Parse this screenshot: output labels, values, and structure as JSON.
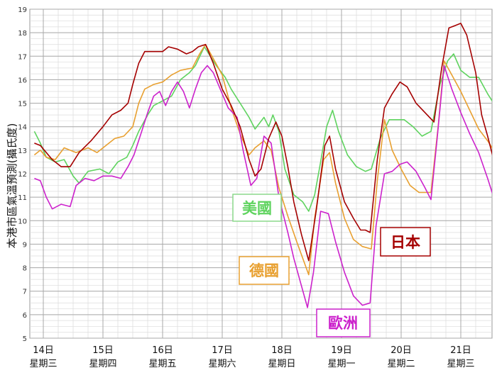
{
  "chart_data": {
    "type": "line",
    "title": "",
    "ylabel": "本港市區氣溫預測(攝氏度)",
    "ylim": [
      5,
      19
    ],
    "ytick_step": 1,
    "grid": true,
    "x_range": [
      -0.25,
      7.35
    ],
    "x_ticks": [
      {
        "x": 0,
        "date": "14日",
        "weekday": "星期三"
      },
      {
        "x": 1,
        "date": "15日",
        "weekday": "星期四"
      },
      {
        "x": 2,
        "date": "16日",
        "weekday": "星期五"
      },
      {
        "x": 3,
        "date": "17日",
        "weekday": "星期六"
      },
      {
        "x": 4,
        "date": "18日",
        "weekday": "星期日"
      },
      {
        "x": 5,
        "date": "19日",
        "weekday": "星期一"
      },
      {
        "x": 6,
        "date": "20日",
        "weekday": "星期二"
      },
      {
        "x": 7,
        "date": "21日",
        "weekday": "星期三"
      }
    ],
    "series": [
      {
        "name": "日本",
        "color": "#a50000",
        "legend_border": "#a50000",
        "points": [
          [
            -0.15,
            13.3
          ],
          [
            -0.05,
            13.2
          ],
          [
            0.05,
            12.9
          ],
          [
            0.15,
            12.6
          ],
          [
            0.3,
            12.3
          ],
          [
            0.45,
            12.3
          ],
          [
            0.6,
            12.9
          ],
          [
            0.8,
            13.4
          ],
          [
            1.0,
            14.0
          ],
          [
            1.15,
            14.5
          ],
          [
            1.3,
            14.7
          ],
          [
            1.42,
            15.0
          ],
          [
            1.5,
            15.8
          ],
          [
            1.6,
            16.7
          ],
          [
            1.7,
            17.2
          ],
          [
            1.85,
            17.2
          ],
          [
            2.0,
            17.2
          ],
          [
            2.1,
            17.4
          ],
          [
            2.25,
            17.3
          ],
          [
            2.4,
            17.1
          ],
          [
            2.5,
            17.2
          ],
          [
            2.6,
            17.4
          ],
          [
            2.72,
            17.5
          ],
          [
            2.85,
            16.7
          ],
          [
            3.0,
            15.6
          ],
          [
            3.15,
            14.9
          ],
          [
            3.3,
            14.0
          ],
          [
            3.45,
            12.6
          ],
          [
            3.55,
            11.9
          ],
          [
            3.65,
            12.2
          ],
          [
            3.78,
            13.5
          ],
          [
            3.9,
            14.2
          ],
          [
            4.0,
            13.6
          ],
          [
            4.1,
            12.3
          ],
          [
            4.2,
            10.8
          ],
          [
            4.33,
            9.4
          ],
          [
            4.45,
            8.3
          ],
          [
            4.58,
            10.5
          ],
          [
            4.72,
            13.2
          ],
          [
            4.8,
            13.6
          ],
          [
            4.9,
            12.2
          ],
          [
            5.05,
            10.8
          ],
          [
            5.2,
            10.1
          ],
          [
            5.32,
            9.6
          ],
          [
            5.4,
            9.6
          ],
          [
            5.48,
            9.5
          ],
          [
            5.6,
            12.6
          ],
          [
            5.72,
            14.8
          ],
          [
            5.85,
            15.4
          ],
          [
            5.98,
            15.9
          ],
          [
            6.1,
            15.7
          ],
          [
            6.25,
            15.0
          ],
          [
            6.4,
            14.6
          ],
          [
            6.55,
            14.2
          ],
          [
            6.68,
            16.5
          ],
          [
            6.8,
            18.2
          ],
          [
            6.9,
            18.3
          ],
          [
            7.0,
            18.4
          ],
          [
            7.1,
            17.9
          ],
          [
            7.25,
            16.3
          ],
          [
            7.35,
            14.5
          ],
          [
            7.45,
            13.6
          ],
          [
            7.55,
            12.6
          ]
        ]
      },
      {
        "name": "美國",
        "color": "#5fd35f",
        "legend_border": "#8bd98b",
        "points": [
          [
            -0.15,
            13.8
          ],
          [
            -0.05,
            13.3
          ],
          [
            0.05,
            12.7
          ],
          [
            0.2,
            12.5
          ],
          [
            0.35,
            12.6
          ],
          [
            0.5,
            11.9
          ],
          [
            0.6,
            11.6
          ],
          [
            0.75,
            12.1
          ],
          [
            0.95,
            12.2
          ],
          [
            1.1,
            12.0
          ],
          [
            1.25,
            12.5
          ],
          [
            1.4,
            12.7
          ],
          [
            1.5,
            13.2
          ],
          [
            1.6,
            13.8
          ],
          [
            1.75,
            14.5
          ],
          [
            1.85,
            14.9
          ],
          [
            2.0,
            15.1
          ],
          [
            2.15,
            15.3
          ],
          [
            2.3,
            16.0
          ],
          [
            2.45,
            16.3
          ],
          [
            2.55,
            16.6
          ],
          [
            2.7,
            17.4
          ],
          [
            2.8,
            17.0
          ],
          [
            2.9,
            16.6
          ],
          [
            3.05,
            16.1
          ],
          [
            3.15,
            15.6
          ],
          [
            3.3,
            15.0
          ],
          [
            3.45,
            14.4
          ],
          [
            3.55,
            13.9
          ],
          [
            3.7,
            14.4
          ],
          [
            3.78,
            14.0
          ],
          [
            3.85,
            14.5
          ],
          [
            3.95,
            13.8
          ],
          [
            4.05,
            12.2
          ],
          [
            4.2,
            11.1
          ],
          [
            4.35,
            10.8
          ],
          [
            4.45,
            10.4
          ],
          [
            4.55,
            11.1
          ],
          [
            4.65,
            12.5
          ],
          [
            4.75,
            14.0
          ],
          [
            4.85,
            14.7
          ],
          [
            4.95,
            13.8
          ],
          [
            5.1,
            12.8
          ],
          [
            5.25,
            12.3
          ],
          [
            5.4,
            12.1
          ],
          [
            5.5,
            12.2
          ],
          [
            5.65,
            13.5
          ],
          [
            5.8,
            14.3
          ],
          [
            5.95,
            14.3
          ],
          [
            6.05,
            14.3
          ],
          [
            6.2,
            14.0
          ],
          [
            6.35,
            13.6
          ],
          [
            6.5,
            13.8
          ],
          [
            6.65,
            15.8
          ],
          [
            6.78,
            16.8
          ],
          [
            6.88,
            17.1
          ],
          [
            7.0,
            16.4
          ],
          [
            7.15,
            16.1
          ],
          [
            7.3,
            16.1
          ],
          [
            7.45,
            15.4
          ],
          [
            7.55,
            15.0
          ]
        ]
      },
      {
        "name": "德國",
        "color": "#e8a030",
        "legend_border": "#e8a030",
        "points": [
          [
            -0.15,
            12.8
          ],
          [
            -0.05,
            13.0
          ],
          [
            0.05,
            12.7
          ],
          [
            0.2,
            12.6
          ],
          [
            0.35,
            13.1
          ],
          [
            0.55,
            12.9
          ],
          [
            0.75,
            13.1
          ],
          [
            0.9,
            12.9
          ],
          [
            1.05,
            13.2
          ],
          [
            1.2,
            13.5
          ],
          [
            1.35,
            13.6
          ],
          [
            1.5,
            14.0
          ],
          [
            1.6,
            15.0
          ],
          [
            1.7,
            15.6
          ],
          [
            1.85,
            15.8
          ],
          [
            2.0,
            15.9
          ],
          [
            2.15,
            16.2
          ],
          [
            2.3,
            16.4
          ],
          [
            2.5,
            16.5
          ],
          [
            2.62,
            17.1
          ],
          [
            2.72,
            17.5
          ],
          [
            2.85,
            16.9
          ],
          [
            3.0,
            16.2
          ],
          [
            3.15,
            14.8
          ],
          [
            3.3,
            13.7
          ],
          [
            3.45,
            12.8
          ],
          [
            3.55,
            13.1
          ],
          [
            3.7,
            13.4
          ],
          [
            3.82,
            13.0
          ],
          [
            3.95,
            11.4
          ],
          [
            4.1,
            10.2
          ],
          [
            4.25,
            9.1
          ],
          [
            4.35,
            8.4
          ],
          [
            4.45,
            7.7
          ],
          [
            4.55,
            10.1
          ],
          [
            4.7,
            12.6
          ],
          [
            4.8,
            12.9
          ],
          [
            4.9,
            11.6
          ],
          [
            5.05,
            10.1
          ],
          [
            5.2,
            9.2
          ],
          [
            5.35,
            8.9
          ],
          [
            5.5,
            8.8
          ],
          [
            5.6,
            11.7
          ],
          [
            5.72,
            14.3
          ],
          [
            5.85,
            13.0
          ],
          [
            6.0,
            12.2
          ],
          [
            6.15,
            11.5
          ],
          [
            6.3,
            11.2
          ],
          [
            6.5,
            11.2
          ],
          [
            6.62,
            14.0
          ],
          [
            6.72,
            16.8
          ],
          [
            6.85,
            16.2
          ],
          [
            7.0,
            15.5
          ],
          [
            7.15,
            14.7
          ],
          [
            7.3,
            13.9
          ],
          [
            7.45,
            13.4
          ],
          [
            7.55,
            13.0
          ]
        ]
      },
      {
        "name": "歐洲",
        "color": "#cc22cc",
        "legend_border": "#cc22cc",
        "points": [
          [
            -0.15,
            11.8
          ],
          [
            -0.05,
            11.7
          ],
          [
            0.05,
            11.0
          ],
          [
            0.15,
            10.5
          ],
          [
            0.3,
            10.7
          ],
          [
            0.45,
            10.6
          ],
          [
            0.55,
            11.5
          ],
          [
            0.7,
            11.8
          ],
          [
            0.85,
            11.7
          ],
          [
            1.0,
            11.9
          ],
          [
            1.15,
            11.9
          ],
          [
            1.3,
            11.8
          ],
          [
            1.42,
            12.3
          ],
          [
            1.52,
            12.8
          ],
          [
            1.65,
            13.8
          ],
          [
            1.75,
            14.6
          ],
          [
            1.85,
            15.3
          ],
          [
            1.95,
            15.5
          ],
          [
            2.05,
            14.9
          ],
          [
            2.15,
            15.5
          ],
          [
            2.25,
            15.9
          ],
          [
            2.35,
            15.5
          ],
          [
            2.45,
            14.8
          ],
          [
            2.55,
            15.6
          ],
          [
            2.65,
            16.3
          ],
          [
            2.75,
            16.6
          ],
          [
            2.85,
            16.3
          ],
          [
            3.0,
            15.4
          ],
          [
            3.1,
            14.8
          ],
          [
            3.25,
            14.4
          ],
          [
            3.35,
            13.0
          ],
          [
            3.48,
            11.5
          ],
          [
            3.58,
            11.8
          ],
          [
            3.7,
            13.6
          ],
          [
            3.82,
            13.3
          ],
          [
            3.95,
            11.0
          ],
          [
            4.1,
            9.5
          ],
          [
            4.2,
            8.4
          ],
          [
            4.32,
            7.3
          ],
          [
            4.43,
            6.3
          ],
          [
            4.53,
            7.8
          ],
          [
            4.65,
            10.4
          ],
          [
            4.78,
            10.3
          ],
          [
            4.9,
            9.1
          ],
          [
            5.05,
            7.8
          ],
          [
            5.2,
            6.8
          ],
          [
            5.35,
            6.4
          ],
          [
            5.48,
            6.5
          ],
          [
            5.58,
            9.8
          ],
          [
            5.72,
            12.0
          ],
          [
            5.85,
            12.1
          ],
          [
            5.98,
            12.4
          ],
          [
            6.1,
            12.5
          ],
          [
            6.25,
            12.1
          ],
          [
            6.4,
            11.4
          ],
          [
            6.5,
            10.9
          ],
          [
            6.6,
            13.4
          ],
          [
            6.72,
            16.6
          ],
          [
            6.85,
            15.6
          ],
          [
            7.0,
            14.6
          ],
          [
            7.15,
            13.7
          ],
          [
            7.3,
            12.9
          ],
          [
            7.45,
            11.8
          ],
          [
            7.55,
            11.0
          ]
        ]
      }
    ],
    "legend": [
      {
        "name": "美國",
        "placement": "center-left",
        "color": "#5fd35f",
        "border": "#8bd98b"
      },
      {
        "name": "德國",
        "placement": "center-left-lower",
        "color": "#e8a030",
        "border": "#e8a030"
      },
      {
        "name": "日本",
        "placement": "center-right",
        "color": "#a50000",
        "border": "#a50000"
      },
      {
        "name": "歐洲",
        "placement": "bottom-center",
        "color": "#cc22cc",
        "border": "#cc22cc"
      }
    ]
  }
}
